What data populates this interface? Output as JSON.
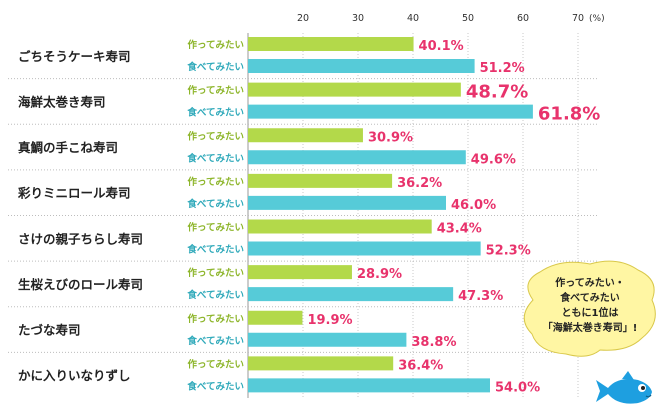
{
  "chart_data": {
    "type": "bar",
    "orientation": "horizontal",
    "categories": [
      "ごちそうケーキ寿司",
      "海鮮太巻き寿司",
      "真鯛の手こね寿司",
      "彩りミニロール寿司",
      "さけの親子ちらし寿司",
      "生桜えびのロール寿司",
      "たづな寿司",
      "かに入りいなりずし"
    ],
    "series": [
      {
        "name": "作ってみたい",
        "color": "#b3d94a",
        "values": [
          40.1,
          48.7,
          30.9,
          36.2,
          43.4,
          28.9,
          19.9,
          36.4
        ]
      },
      {
        "name": "食べてみたい",
        "color": "#56cbd8",
        "values": [
          51.2,
          61.8,
          49.6,
          46.0,
          52.3,
          47.3,
          38.8,
          54.0
        ]
      }
    ],
    "value_labels": [
      [
        "40.1%",
        "48.7%",
        "30.9%",
        "36.2%",
        "43.4%",
        "28.9%",
        "19.9%",
        "36.4%"
      ],
      [
        "51.2%",
        "61.8%",
        "49.6%",
        "46.0%",
        "52.3%",
        "47.3%",
        "38.8%",
        "54.0%"
      ]
    ],
    "highlight_index": 1,
    "xlim": [
      10,
      70
    ],
    "xticks": [
      20,
      30,
      40,
      50,
      60,
      70
    ],
    "unit": "(%)",
    "grid": true,
    "title": "",
    "xlabel": "",
    "ylabel": ""
  },
  "annotation": {
    "lines": [
      "作ってみたい・",
      "食べてみたい",
      "ともに1位は",
      "「海鮮太巻き寿司」!"
    ],
    "icon": "fish-icon",
    "bubble_color": "#fff6a3",
    "fish_color": "#1e9fe0"
  },
  "colors": {
    "value_label": "#e8336c",
    "series_label_make": "#8db52a",
    "series_label_eat": "#2fa9ba",
    "grid": "#c8c8c8",
    "row_separator": "#bdbdbd"
  }
}
